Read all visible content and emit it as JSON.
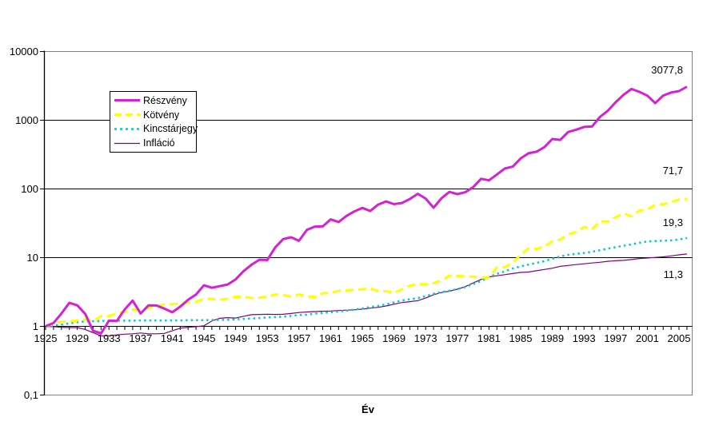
{
  "chart_data": {
    "type": "line",
    "title": "",
    "xlabel": "Év",
    "ylabel": "",
    "y_scale": "log",
    "ylim": [
      0.1,
      10000
    ],
    "axis_cross_value": 1,
    "grid_values": [
      1000,
      100,
      10
    ],
    "y_ticks": [
      {
        "label": "10000",
        "value": 10000
      },
      {
        "label": "1000",
        "value": 1000
      },
      {
        "label": "100",
        "value": 100
      },
      {
        "label": "10",
        "value": 10
      },
      {
        "label": "1",
        "value": 1
      },
      {
        "label": "0,1",
        "value": 0.1
      }
    ],
    "x": [
      1925,
      1926,
      1927,
      1928,
      1929,
      1930,
      1931,
      1932,
      1933,
      1934,
      1935,
      1936,
      1937,
      1938,
      1939,
      1940,
      1941,
      1942,
      1943,
      1944,
      1945,
      1946,
      1947,
      1948,
      1949,
      1950,
      1951,
      1952,
      1953,
      1954,
      1955,
      1956,
      1957,
      1958,
      1959,
      1960,
      1961,
      1962,
      1963,
      1964,
      1965,
      1966,
      1967,
      1968,
      1969,
      1970,
      1971,
      1972,
      1973,
      1974,
      1975,
      1976,
      1977,
      1978,
      1979,
      1980,
      1981,
      1982,
      1983,
      1984,
      1985,
      1986,
      1987,
      1988,
      1989,
      1990,
      1991,
      1992,
      1993,
      1994,
      1995,
      1996,
      1997,
      1998,
      1999,
      2000,
      2001,
      2002,
      2003,
      2004,
      2005,
      2006
    ],
    "x_label_years": [
      1925,
      1929,
      1933,
      1937,
      1941,
      1945,
      1949,
      1953,
      1957,
      1961,
      1965,
      1969,
      1973,
      1977,
      1981,
      1985,
      1989,
      1993,
      1997,
      2001,
      2005
    ],
    "legend_position": "upper-left-inside",
    "series": [
      {
        "name": "Részvény",
        "color": "#D620D6",
        "style": "solid",
        "width": 3,
        "end_label": "3077,8",
        "values": [
          1.0,
          1.12,
          1.54,
          2.2,
          2.02,
          1.52,
          0.86,
          0.79,
          1.21,
          1.2,
          1.77,
          2.37,
          1.54,
          2.02,
          2.01,
          1.81,
          1.6,
          1.93,
          2.43,
          2.91,
          3.96,
          3.64,
          3.85,
          4.07,
          4.83,
          6.36,
          7.89,
          9.34,
          9.24,
          14.1,
          18.6,
          19.8,
          17.6,
          25.3,
          28.3,
          28.5,
          36.1,
          33.0,
          40.5,
          47.1,
          53.0,
          47.7,
          59.1,
          65.6,
          60.1,
          62.5,
          71.4,
          85.0,
          72.5,
          53.3,
          73.1,
          90.6,
          84.1,
          89.6,
          106.1,
          140.5,
          133.6,
          162.2,
          198.7,
          211.2,
          278.3,
          330.3,
          348.0,
          405.5,
          533.6,
          517.5,
          674.9,
          726.4,
          799.2,
          809.7,
          1113.9,
          1370.9,
          1828.3,
          2350.9,
          2845.6,
          2586.5,
          2279.1,
          1775.3,
          2284.8,
          2533.2,
          2657.6,
          3077.8
        ]
      },
      {
        "name": "Kötvény",
        "color": "#FFFF00",
        "style": "dashed",
        "width": 3,
        "end_label": "71,7",
        "values": [
          1.0,
          1.08,
          1.17,
          1.18,
          1.22,
          1.27,
          1.2,
          1.41,
          1.41,
          1.55,
          1.63,
          1.75,
          1.75,
          1.85,
          1.96,
          2.08,
          2.1,
          2.16,
          2.21,
          2.27,
          2.52,
          2.51,
          2.44,
          2.53,
          2.69,
          2.69,
          2.59,
          2.62,
          2.71,
          2.91,
          2.87,
          2.71,
          2.91,
          2.73,
          2.67,
          3.04,
          3.07,
          3.28,
          3.32,
          3.43,
          3.46,
          3.59,
          3.26,
          3.25,
          3.08,
          3.45,
          3.91,
          4.13,
          4.09,
          4.26,
          4.65,
          5.44,
          5.4,
          5.34,
          5.27,
          5.06,
          5.16,
          7.24,
          7.29,
          8.42,
          11.04,
          13.72,
          13.35,
          14.64,
          17.29,
          18.36,
          21.88,
          23.64,
          27.93,
          25.74,
          33.86,
          33.57,
          38.85,
          43.93,
          40.01,
          48.54,
          50.31,
          58.96,
          59.82,
          64.98,
          70.04,
          71.7
        ]
      },
      {
        "name": "Kincstárjegy",
        "color": "#00CCCC",
        "style": "dotted",
        "width": 2.5,
        "end_label": "19,3",
        "values": [
          1.0,
          1.03,
          1.06,
          1.1,
          1.15,
          1.18,
          1.19,
          1.2,
          1.21,
          1.21,
          1.21,
          1.21,
          1.22,
          1.22,
          1.22,
          1.22,
          1.22,
          1.22,
          1.23,
          1.23,
          1.23,
          1.24,
          1.24,
          1.25,
          1.27,
          1.28,
          1.3,
          1.32,
          1.35,
          1.36,
          1.38,
          1.42,
          1.46,
          1.48,
          1.53,
          1.57,
          1.6,
          1.64,
          1.69,
          1.75,
          1.82,
          1.91,
          1.99,
          2.09,
          2.23,
          2.38,
          2.48,
          2.58,
          2.75,
          2.98,
          3.15,
          3.31,
          3.48,
          3.73,
          4.11,
          4.58,
          5.25,
          5.8,
          6.31,
          6.94,
          7.47,
          7.93,
          8.37,
          8.9,
          9.65,
          10.4,
          10.98,
          11.36,
          11.69,
          12.15,
          12.83,
          13.5,
          14.21,
          14.9,
          15.6,
          16.52,
          17.16,
          17.44,
          17.62,
          17.82,
          18.36,
          19.3
        ]
      },
      {
        "name": "Infláció",
        "color": "#800080",
        "style": "solid",
        "width": 1.2,
        "end_label": "11,3",
        "values": [
          1.0,
          0.99,
          0.97,
          0.96,
          0.96,
          0.9,
          0.81,
          0.73,
          0.73,
          0.75,
          0.77,
          0.78,
          0.8,
          0.78,
          0.78,
          0.79,
          0.86,
          0.94,
          0.97,
          0.99,
          1.02,
          1.2,
          1.31,
          1.34,
          1.32,
          1.4,
          1.48,
          1.49,
          1.5,
          1.49,
          1.5,
          1.54,
          1.59,
          1.62,
          1.64,
          1.66,
          1.67,
          1.7,
          1.72,
          1.74,
          1.78,
          1.84,
          1.89,
          1.98,
          2.1,
          2.22,
          2.29,
          2.37,
          2.58,
          2.89,
          3.1,
          3.25,
          3.47,
          3.78,
          4.28,
          4.81,
          5.24,
          5.44,
          5.65,
          5.87,
          6.1,
          6.17,
          6.44,
          6.72,
          7.03,
          7.46,
          7.69,
          7.92,
          8.13,
          8.35,
          8.56,
          8.85,
          9.0,
          9.14,
          9.39,
          9.71,
          9.86,
          10.09,
          10.28,
          10.62,
          10.98,
          11.3
        ]
      }
    ]
  },
  "colors": {
    "background": "#FFFFFF",
    "plot_border": "#808080",
    "grid": "#000000",
    "axis": "#000000"
  }
}
